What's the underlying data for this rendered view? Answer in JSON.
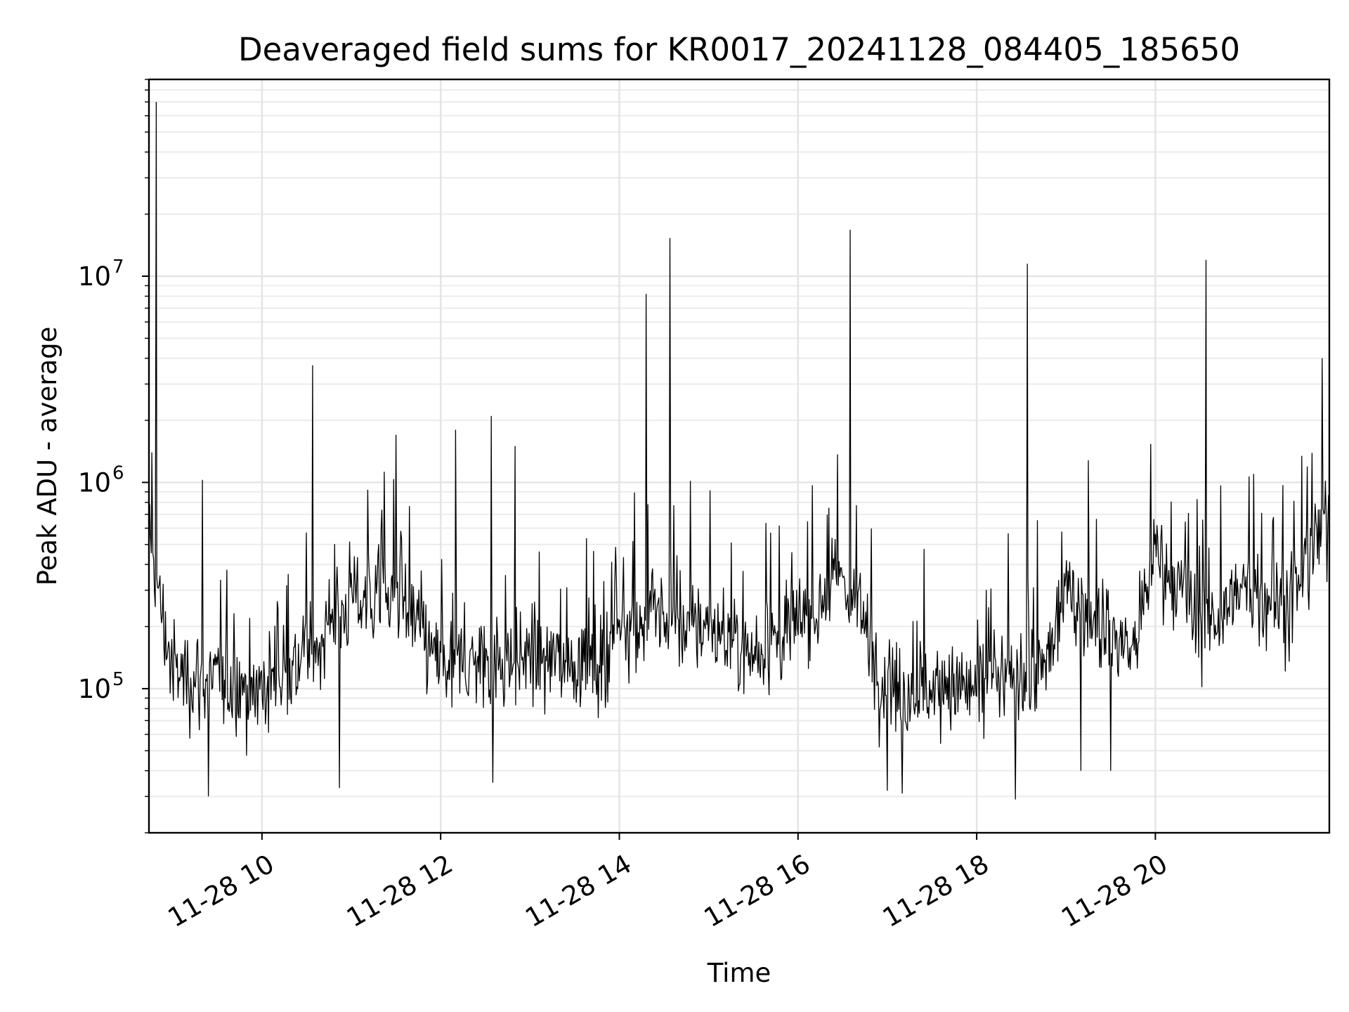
{
  "chart_data": {
    "type": "line",
    "title": "Deaveraged field sums for KR0017_20241128_084405_185650",
    "xlabel": "Time",
    "ylabel": "Peak ADU - average",
    "yscale": "log",
    "ylim": [
      20000,
      90000000
    ],
    "xlim": [
      "2024-11-28 08:44:05",
      "2024-11-28 21:56:50"
    ],
    "grid": "major and minor, light gray",
    "line_color": "#000000",
    "x_ticks": [
      {
        "value": "2024-11-28 10:00",
        "label": "11-28 10"
      },
      {
        "value": "2024-11-28 12:00",
        "label": "11-28 12"
      },
      {
        "value": "2024-11-28 14:00",
        "label": "11-28 14"
      },
      {
        "value": "2024-11-28 16:00",
        "label": "11-28 16"
      },
      {
        "value": "2024-11-28 18:00",
        "label": "11-28 18"
      },
      {
        "value": "2024-11-28 20:00",
        "label": "11-28 20"
      }
    ],
    "y_ticks": [
      {
        "value": 100000,
        "base": "10",
        "exp": "5"
      },
      {
        "value": 1000000,
        "base": "10",
        "exp": "6"
      },
      {
        "value": 10000000,
        "base": "10",
        "exp": "7"
      }
    ],
    "series": [
      {
        "baseline_trend": [
          [
            "2024-11-28 08:44",
            500000
          ],
          [
            "2024-11-28 09:00",
            120000
          ],
          [
            "2024-11-28 10:00",
            100000
          ],
          [
            "2024-11-28 10:30",
            150000
          ],
          [
            "2024-11-28 11:00",
            280000
          ],
          [
            "2024-11-28 11:30",
            280000
          ],
          [
            "2024-11-28 12:00",
            130000
          ],
          [
            "2024-11-28 13:00",
            140000
          ],
          [
            "2024-11-28 13:50",
            130000
          ],
          [
            "2024-11-28 14:00",
            220000
          ],
          [
            "2024-11-28 15:00",
            200000
          ],
          [
            "2024-11-28 15:30",
            150000
          ],
          [
            "2024-11-28 16:00",
            200000
          ],
          [
            "2024-11-28 16:30",
            350000
          ],
          [
            "2024-11-28 17:00",
            100000
          ],
          [
            "2024-11-28 18:00",
            100000
          ],
          [
            "2024-11-28 18:45",
            120000
          ],
          [
            "2024-11-28 19:00",
            300000
          ],
          [
            "2024-11-28 19:45",
            150000
          ],
          [
            "2024-11-28 20:00",
            450000
          ],
          [
            "2024-11-28 20:30",
            200000
          ],
          [
            "2024-11-28 21:00",
            300000
          ],
          [
            "2024-11-28 21:30",
            250000
          ],
          [
            "2024-11-28 21:56",
            700000
          ]
        ],
        "spikes": [
          [
            "2024-11-28 08:49",
            70000000
          ],
          [
            "2024-11-28 08:46",
            1400000
          ],
          [
            "2024-11-28 09:20",
            1030000
          ],
          [
            "2024-11-28 10:34",
            3700000
          ],
          [
            "2024-11-28 11:30",
            1700000
          ],
          [
            "2024-11-28 12:10",
            1800000
          ],
          [
            "2024-11-28 12:34",
            2100000
          ],
          [
            "2024-11-28 12:50",
            1500000
          ],
          [
            "2024-11-28 14:18",
            8200000
          ],
          [
            "2024-11-28 14:34",
            15300000
          ],
          [
            "2024-11-28 16:35",
            16800000
          ],
          [
            "2024-11-28 18:34",
            11500000
          ],
          [
            "2024-11-28 20:34",
            12000000
          ],
          [
            "2024-11-28 21:52",
            4000000
          ],
          [
            "2024-11-28 19:15",
            1280000
          ],
          [
            "2024-11-28 21:06",
            1100000
          ]
        ],
        "dips": [
          [
            "2024-11-28 09:24",
            30000
          ],
          [
            "2024-11-28 10:52",
            33000
          ],
          [
            "2024-11-28 12:35",
            35000
          ],
          [
            "2024-11-28 17:00",
            32000
          ],
          [
            "2024-11-28 17:10",
            31000
          ],
          [
            "2024-11-28 18:26",
            29000
          ],
          [
            "2024-11-28 19:10",
            40000
          ],
          [
            "2024-11-28 19:30",
            40000
          ]
        ]
      }
    ]
  }
}
